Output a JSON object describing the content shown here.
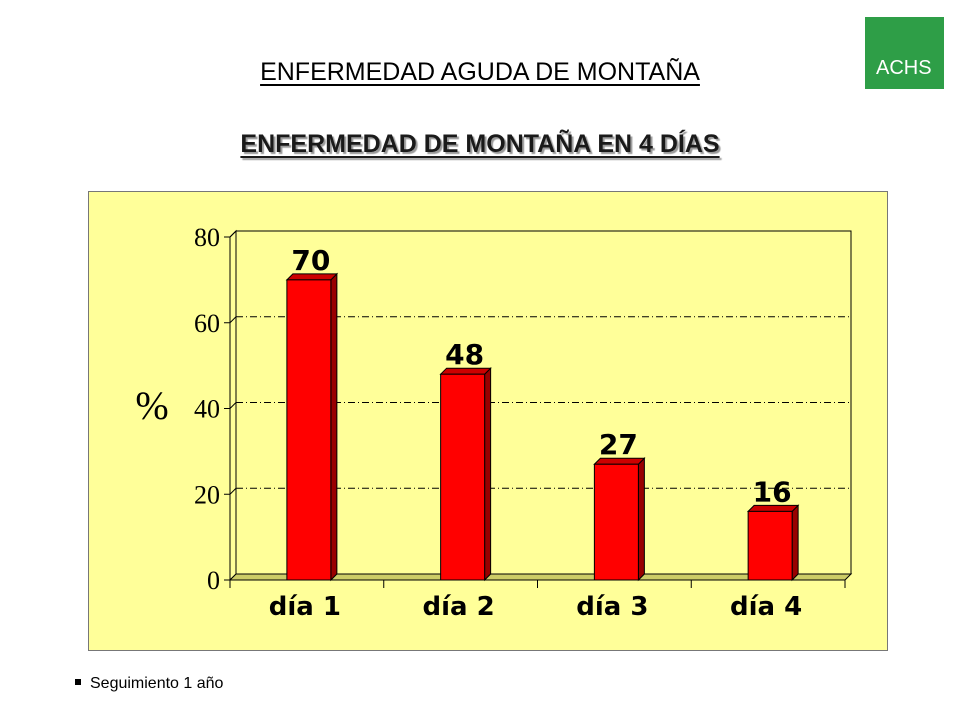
{
  "logo": {
    "text": "ACHS",
    "color": "#2e9e47"
  },
  "header": {
    "title": "ENFERMEDAD AGUDA DE MONTAÑA",
    "subtitle": "ENFERMEDAD DE MONTAÑA EN 4 DÍAS"
  },
  "chart_data": {
    "type": "bar",
    "categories": [
      "día 1",
      "día 2",
      "día 3",
      "día 4"
    ],
    "values": [
      70,
      48,
      27,
      16
    ],
    "data_labels": [
      "70",
      "48",
      "27",
      "16"
    ],
    "title": "",
    "xlabel": "",
    "ylabel": "%",
    "ylim": [
      0,
      80
    ],
    "yticks": [
      0,
      20,
      40,
      60,
      80
    ],
    "grid": true,
    "bar_color": "#ff0000",
    "background_color": "#ffff99"
  },
  "footer": {
    "note": "Seguimiento 1 año"
  }
}
